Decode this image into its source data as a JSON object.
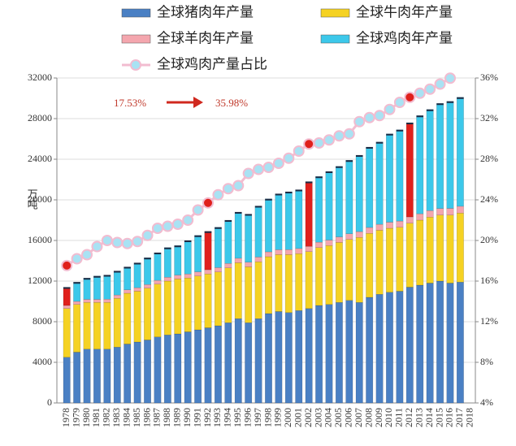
{
  "chart_data": {
    "type": "bar",
    "y_label": "万吨",
    "annotations": [
      {
        "text": "17.53%"
      },
      {
        "text": "35.98%"
      }
    ],
    "categories": [
      "1978",
      "1979",
      "1980",
      "1981",
      "1982",
      "1983",
      "1984",
      "1985",
      "1986",
      "1987",
      "1988",
      "1989",
      "1990",
      "1991",
      "1992",
      "1993",
      "1994",
      "1995",
      "1996",
      "1997",
      "1998",
      "1999",
      "2000",
      "2001",
      "2002",
      "2003",
      "2004",
      "2005",
      "2006",
      "2007",
      "2008",
      "2009",
      "2010",
      "2011",
      "2012",
      "2013",
      "2014",
      "2015",
      "2016",
      "2017",
      "2018"
    ],
    "series": [
      {
        "name": "全球猪肉年产量",
        "color": "#4a80c4",
        "values": [
          4500,
          5000,
          5300,
          5300,
          5300,
          5500,
          5800,
          6000,
          6200,
          6500,
          6700,
          6800,
          7000,
          7200,
          7400,
          7600,
          7900,
          8300,
          7900,
          8300,
          8800,
          9000,
          8900,
          9100,
          9300,
          9600,
          9700,
          9900,
          10100,
          9900,
          10400,
          10700,
          10900,
          11000,
          11400,
          11600,
          11800,
          12000,
          11800,
          11900,
          null
        ]
      },
      {
        "name": "全球牛肉年产量",
        "color": "#f5d223",
        "values": [
          4800,
          4700,
          4600,
          4600,
          4600,
          4800,
          5000,
          5000,
          5100,
          5200,
          5300,
          5400,
          5300,
          5300,
          5300,
          5300,
          5400,
          5500,
          5500,
          5600,
          5600,
          5600,
          5700,
          5600,
          5600,
          5700,
          5800,
          5900,
          6000,
          6400,
          6300,
          6300,
          6300,
          6300,
          6300,
          6400,
          6500,
          6500,
          6700,
          6800,
          null
        ]
      },
      {
        "name": "全球羊肉年产量",
        "color": "#f4a6ae",
        "values": [
          300,
          300,
          300,
          300,
          320,
          330,
          340,
          350,
          360,
          370,
          380,
          390,
          400,
          410,
          420,
          430,
          440,
          450,
          460,
          470,
          480,
          490,
          500,
          510,
          520,
          530,
          540,
          550,
          560,
          570,
          580,
          590,
          600,
          610,
          620,
          630,
          640,
          650,
          660,
          670,
          null
        ]
      },
      {
        "name": "全球鸡肉年产量",
        "color": "#3cc8ea",
        "values": [
          1800,
          1900,
          2100,
          2300,
          2380,
          2370,
          2260,
          2450,
          2640,
          2730,
          2920,
          2910,
          3300,
          3590,
          3780,
          3970,
          4260,
          4550,
          4740,
          5030,
          5220,
          5510,
          5700,
          5790,
          6380,
          6470,
          6760,
          6950,
          7240,
          7530,
          7920,
          8110,
          8700,
          8990,
          9280,
          9670,
          9960,
          10350,
          10540,
          10730,
          null
        ]
      },
      {
        "name": "全球鸡肉产量占比",
        "type": "line",
        "axis": "y2",
        "color": "#f2bcd0",
        "marker_color": "#a9e2f3",
        "values": [
          17.53,
          18.2,
          18.6,
          19.4,
          20.0,
          19.8,
          19.7,
          19.9,
          20.5,
          21.2,
          21.4,
          21.6,
          22.0,
          23.0,
          23.7,
          24.5,
          25.1,
          25.4,
          26.6,
          27.0,
          27.2,
          27.6,
          28.1,
          28.8,
          29.5,
          29.6,
          29.9,
          30.3,
          30.5,
          31.7,
          32.1,
          32.3,
          32.9,
          33.6,
          34.1,
          34.5,
          34.9,
          35.4,
          35.98,
          null,
          null
        ]
      }
    ],
    "highlight": [
      "1978",
      "1992",
      "2002",
      "2012"
    ],
    "highlight_color": "#e0201c",
    "ylim": [
      0,
      32000
    ],
    "yticks": [
      0,
      4000,
      8000,
      12000,
      16000,
      20000,
      24000,
      28000,
      32000
    ],
    "y2lim": [
      4,
      36
    ],
    "y2ticks": [
      {
        "value": 4,
        "label": "4%"
      },
      {
        "value": 8,
        "label": "8%"
      },
      {
        "value": 12,
        "label": "12%"
      },
      {
        "value": 16,
        "label": "16%"
      },
      {
        "value": 20,
        "label": "20%"
      },
      {
        "value": 24,
        "label": "24%"
      },
      {
        "value": 28,
        "label": "28%"
      },
      {
        "value": 32,
        "label": "32%"
      },
      {
        "value": 36,
        "label": "36%"
      }
    ],
    "grid": true
  }
}
